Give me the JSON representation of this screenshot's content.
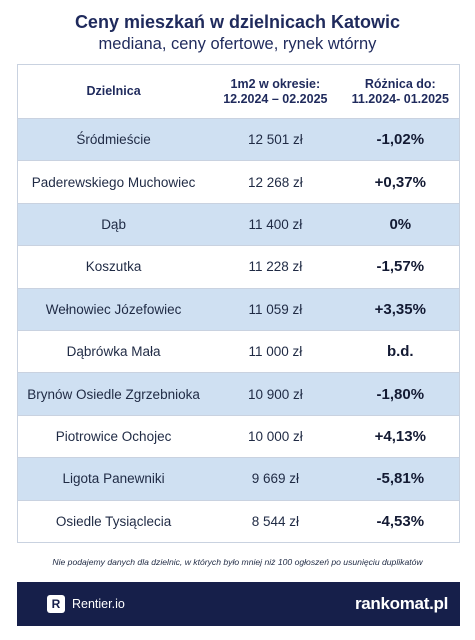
{
  "title": "Ceny mieszkań w dzielnicach Katowic",
  "subtitle": "mediana, ceny ofertowe, rynek wtórny",
  "table": {
    "headers": {
      "district": "Dzielnica",
      "price_line1": "1m2 w okresie:",
      "price_line2": "12.2024 – 02.2025",
      "diff_line1": "Różnica do:",
      "diff_line2": "11.2024- 01.2025"
    },
    "rows": [
      {
        "district": "Śródmieście",
        "price": "12 501 zł",
        "diff": "-1,02%"
      },
      {
        "district": "Paderewskiego Muchowiec",
        "price": "12 268 zł",
        "diff": "+0,37%"
      },
      {
        "district": "Dąb",
        "price": "11 400 zł",
        "diff": "0%"
      },
      {
        "district": "Koszutka",
        "price": "11 228 zł",
        "diff": "-1,57%"
      },
      {
        "district": "Wełnowiec Józefowiec",
        "price": "11 059 zł",
        "diff": "+3,35%"
      },
      {
        "district": "Dąbrówka Mała",
        "price": "11 000 zł",
        "diff": "b.d."
      },
      {
        "district": "Brynów Osiedle Zgrzebnioka",
        "price": "10 900 zł",
        "diff": "-1,80%"
      },
      {
        "district": "Piotrowice Ochojec",
        "price": "10 000 zł",
        "diff": "+4,13%"
      },
      {
        "district": "Ligota Panewniki",
        "price": "9 669 zł",
        "diff": "-5,81%"
      },
      {
        "district": "Osiedle Tysiąclecia",
        "price": "8 544  zł",
        "diff": "-4,53%"
      }
    ]
  },
  "footnote": "Nie podajemy danych dla dzielnic, w których było mniej niż 100 ogłoszeń po usunięciu duplikatów",
  "footer": {
    "rentier_logo_letter": "R",
    "rentier_label": "Rentier.io",
    "rankomat_label": "rankomat.pl"
  },
  "colors": {
    "title": "#1f2a5c",
    "row_highlight": "#cfe0f2",
    "footer_bg": "#161f4a"
  }
}
